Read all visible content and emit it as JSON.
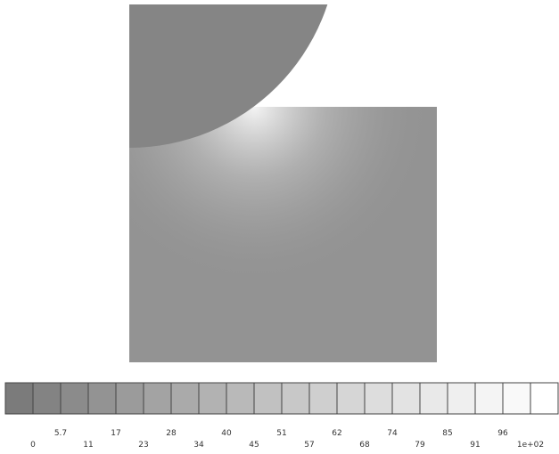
{
  "legend": {
    "labels": [
      "0",
      "5.7",
      "11",
      "17",
      "23",
      "28",
      "34",
      "40",
      "45",
      "51",
      "57",
      "62",
      "68",
      "74",
      "79",
      "85",
      "91",
      "96",
      "1e+02"
    ],
    "colors": [
      "#7b7b7b",
      "#838383",
      "#8b8b8b",
      "#939393",
      "#9b9b9b",
      "#a3a3a3",
      "#aaaaaa",
      "#b2b2b2",
      "#b9b9b9",
      "#c1c1c1",
      "#c8c8c8",
      "#cfcfcf",
      "#d6d6d6",
      "#dddddd",
      "#e3e3e3",
      "#e9e9e9",
      "#efefef",
      "#f4f4f4",
      "#f9f9f9",
      "#ffffff"
    ]
  }
}
